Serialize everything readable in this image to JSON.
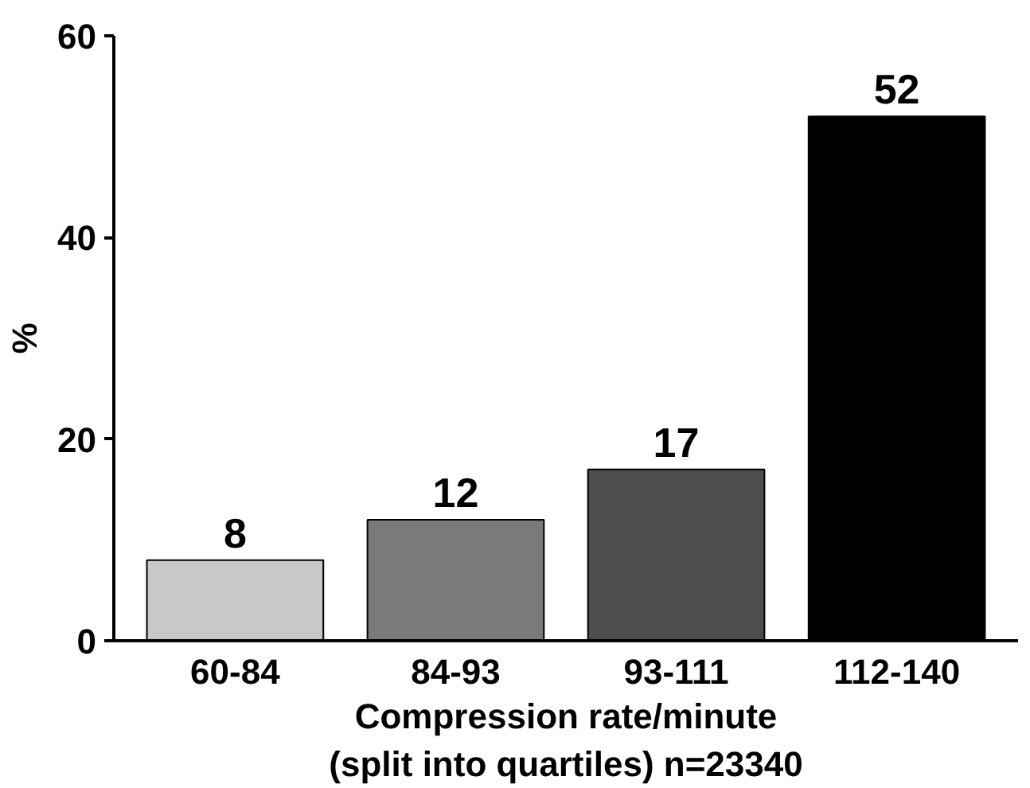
{
  "chart_data": {
    "type": "bar",
    "categories": [
      "60-84",
      "84-93",
      "93-111",
      "112-140"
    ],
    "values": [
      8,
      12,
      17,
      52
    ],
    "colors": [
      "#c8c8c8",
      "#7a7a7a",
      "#4d4d4d",
      "#000000"
    ],
    "ylabel": "%",
    "xlabel": "Compression rate/minute\n(split into quartiles) n=23340",
    "ylim": [
      0,
      60
    ],
    "yticks": [
      0,
      20,
      40,
      60
    ],
    "data_labels": true,
    "grid": false
  }
}
